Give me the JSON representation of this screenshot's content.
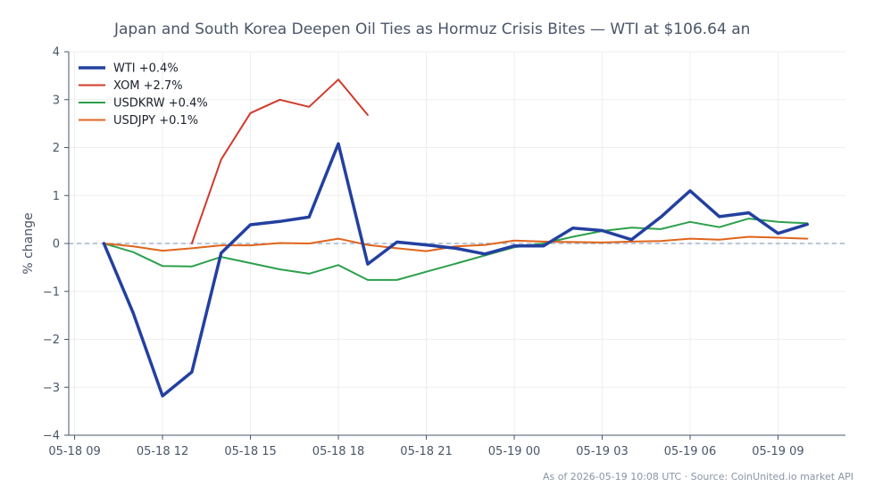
{
  "chart_data": {
    "type": "line",
    "title": "Japan and South Korea Deepen Oil Ties as Hormuz Crisis Bites — WTI at $106.64 an",
    "xlabel": "",
    "ylabel": "% change",
    "ylim": [
      -4,
      4
    ],
    "yticks": [
      "−4",
      "−3",
      "−2",
      "−1",
      "0",
      "1",
      "2",
      "3",
      "4"
    ],
    "xlim": [
      "05-18 08:48",
      "05-19 11:18"
    ],
    "xtick_labels": [
      "05-18 09",
      "05-18 12",
      "05-18 15",
      "05-18 18",
      "05-18 21",
      "05-19 00",
      "05-19 03",
      "05-19 06",
      "05-19 09"
    ],
    "xtick_times": [
      "05-18 09:00",
      "05-18 12:00",
      "05-18 15:00",
      "05-18 18:00",
      "05-18 21:00",
      "05-19 00:00",
      "05-19 03:00",
      "05-19 06:00",
      "05-19 09:00"
    ],
    "x": [
      "05-18 10:00",
      "05-18 11:00",
      "05-18 12:00",
      "05-18 13:00",
      "05-18 14:00",
      "05-18 15:00",
      "05-18 16:00",
      "05-18 17:00",
      "05-18 18:00",
      "05-18 19:00",
      "05-18 20:00",
      "05-18 21:00",
      "05-18 22:00",
      "05-18 23:00",
      "05-19 00:00",
      "05-19 01:00",
      "05-19 02:00",
      "05-19 03:00",
      "05-19 04:00",
      "05-19 05:00",
      "05-19 06:00",
      "05-19 07:00",
      "05-19 08:00",
      "05-19 09:00",
      "05-19 10:00"
    ],
    "series": [
      {
        "name": "WTI +0.4%",
        "color": "#2340a0",
        "width": 3.5,
        "values": [
          0.0,
          -1.45,
          -3.18,
          -2.68,
          -0.2,
          0.39,
          0.46,
          0.55,
          2.08,
          -0.43,
          0.03,
          -0.03,
          -0.1,
          -0.22,
          -0.05,
          -0.05,
          0.32,
          0.27,
          0.08,
          0.55,
          1.1,
          0.56,
          0.64,
          0.21,
          0.4
        ]
      },
      {
        "name": "XOM +2.7%",
        "color": "#d03a2c",
        "width": 2,
        "values": [
          null,
          null,
          null,
          0.0,
          1.75,
          2.72,
          3.0,
          2.85,
          3.42,
          2.68,
          null,
          null,
          null,
          null,
          null,
          null,
          null,
          null,
          null,
          null,
          null,
          null,
          null,
          null,
          null
        ]
      },
      {
        "name": "USDKRW +0.4%",
        "color": "#2ca04c",
        "width": 2,
        "values": [
          0.0,
          -0.18,
          -0.47,
          -0.48,
          -0.28,
          -0.41,
          -0.54,
          -0.63,
          -0.45,
          -0.76,
          -0.76,
          -0.59,
          -0.42,
          -0.25,
          -0.08,
          0.0,
          0.14,
          0.26,
          0.33,
          0.3,
          0.45,
          0.34,
          0.52,
          0.45,
          0.42
        ]
      },
      {
        "name": "USDJPY +0.1%",
        "color": "#e0641c",
        "width": 2,
        "values": [
          0.0,
          -0.06,
          -0.15,
          -0.1,
          -0.04,
          -0.04,
          0.01,
          0.0,
          0.1,
          -0.03,
          -0.1,
          -0.16,
          -0.06,
          -0.03,
          0.06,
          0.04,
          0.03,
          0.02,
          0.04,
          0.05,
          0.1,
          0.08,
          0.14,
          0.12,
          0.1
        ]
      }
    ],
    "baseline": 0,
    "grid": true,
    "legend_position": "top-left",
    "footer": "As of 2026-05-19 10:08 UTC · Source: CoinUnited.io market API"
  }
}
